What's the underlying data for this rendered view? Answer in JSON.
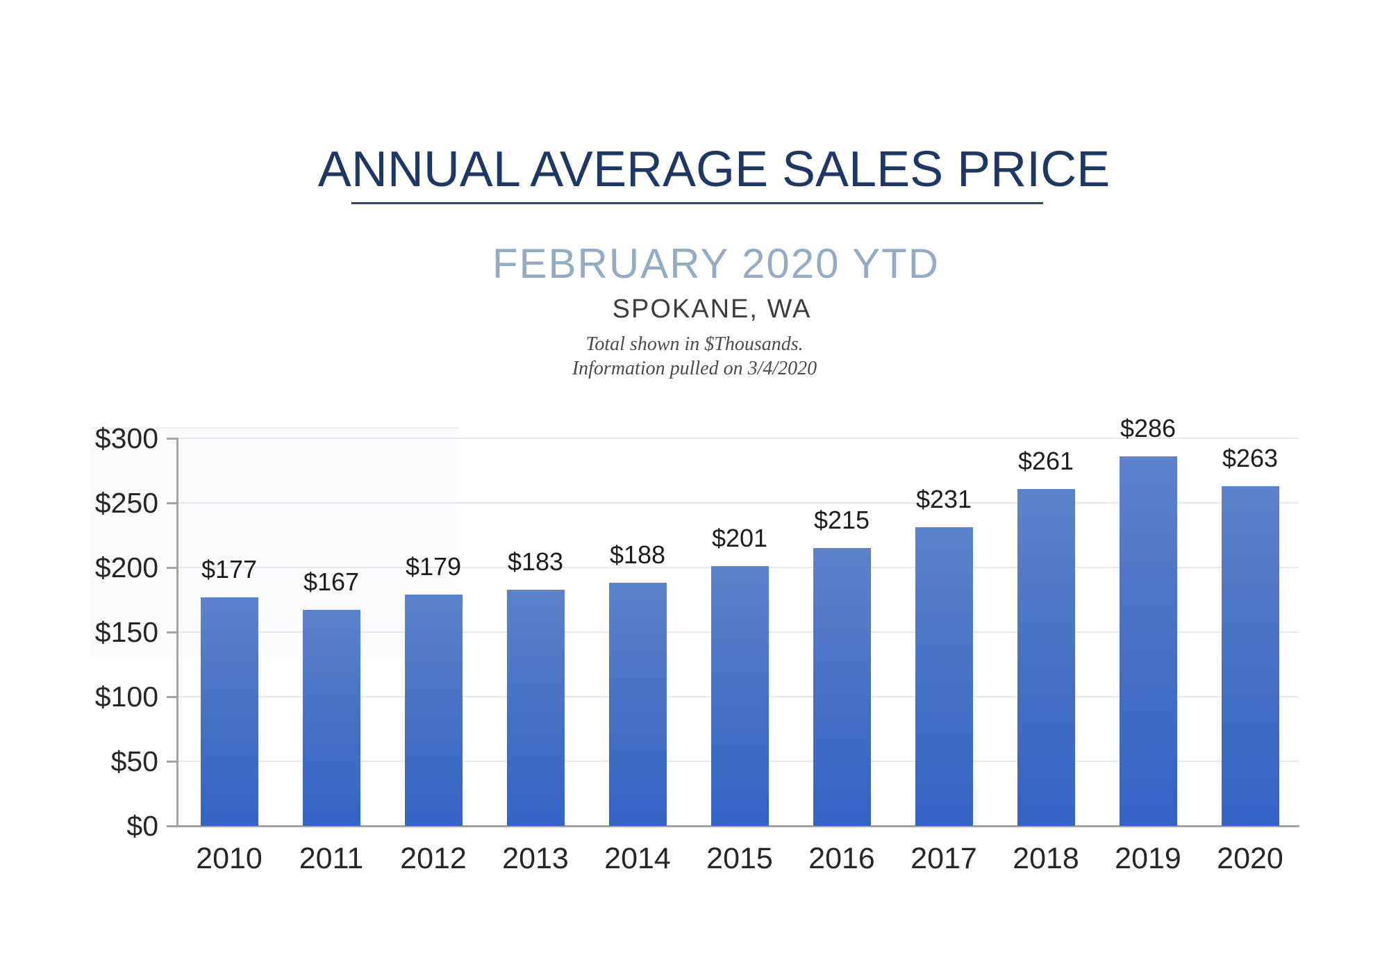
{
  "header": {
    "title": "ANNUAL AVERAGE SALES PRICE",
    "subtitle": "FEBRUARY 2020 YTD",
    "location": "SPOKANE, WA",
    "note_line1": "Total shown in $Thousands.",
    "note_line2": "Information pulled on 3/4/2020"
  },
  "colors": {
    "title_navy": "#1e3765",
    "rule_navy": "#27447b",
    "subtitle_blue_gray": "#96aac6",
    "bar_gradient_top": "#5c82cb",
    "bar_gradient_bottom": "#3363c5",
    "gridline": "#e4e6f0",
    "axis_line": "#a3a3a3",
    "label_text": "#262626"
  },
  "chart_data": {
    "type": "bar",
    "title": "ANNUAL AVERAGE SALES PRICE",
    "subtitle": "FEBRUARY 2020 YTD",
    "location": "SPOKANE, WA",
    "unit": "$ thousands",
    "categories": [
      "2010",
      "2011",
      "2012",
      "2013",
      "2014",
      "2015",
      "2016",
      "2017",
      "2018",
      "2019",
      "2020"
    ],
    "values": [
      177,
      167,
      179,
      183,
      188,
      201,
      215,
      231,
      261,
      286,
      263
    ],
    "value_labels": [
      "$177",
      "$167",
      "$179",
      "$183",
      "$188",
      "$201",
      "$215",
      "$231",
      "$261",
      "$286",
      "$263"
    ],
    "xlabel": "",
    "ylabel": "",
    "ylim": [
      0,
      300
    ],
    "y_axis": {
      "min": 0,
      "max": 300,
      "tick_step": 50,
      "tick_values": [
        300,
        250,
        200,
        150,
        100,
        50,
        0
      ],
      "tick_labels": [
        "$300",
        "$250",
        "$200",
        "$150",
        "$100",
        "$50",
        "$0"
      ]
    },
    "grid": true,
    "legend": "none"
  }
}
